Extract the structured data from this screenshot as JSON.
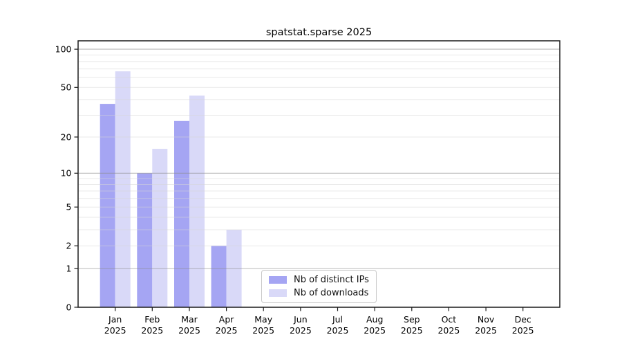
{
  "chart_data": {
    "type": "bar",
    "title": "spatstat.sparse 2025",
    "categories": [
      "Jan 2025",
      "Feb 2025",
      "Mar 2025",
      "Apr 2025",
      "May 2025",
      "Jun 2025",
      "Jul 2025",
      "Aug 2025",
      "Sep 2025",
      "Oct 2025",
      "Nov 2025",
      "Dec 2025"
    ],
    "series": [
      {
        "name": "Nb of distinct IPs",
        "color": "#a5a5f3",
        "values": [
          37,
          10,
          27,
          2,
          0,
          0,
          0,
          0,
          0,
          0,
          0,
          0
        ]
      },
      {
        "name": "Nb of downloads",
        "color": "#d9d9f8",
        "values": [
          67,
          16,
          43,
          3,
          0,
          0,
          0,
          0,
          0,
          0,
          0,
          0
        ]
      }
    ],
    "y_axis": {
      "scale": "log1p",
      "ticks": [
        0,
        1,
        2,
        5,
        10,
        20,
        50,
        100
      ],
      "limit_top": 116
    },
    "x_axis": {
      "tick_label_second_line": "2025"
    },
    "grid": "both",
    "legend_position": "lower-center-inside",
    "colors": {
      "major_grid": "#8c8c8c",
      "minor_grid": "#d6d6d6",
      "spine": "#1a1a1a",
      "text": "#000000"
    }
  }
}
